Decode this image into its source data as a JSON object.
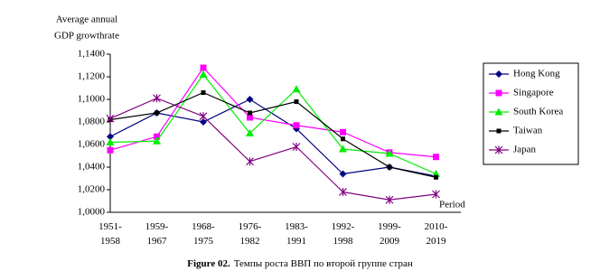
{
  "chart_data": {
    "type": "line",
    "y_label": [
      "Average annual",
      "GDP growthrate"
    ],
    "x_label": "Period",
    "caption": {
      "label": "Figure 02.",
      "text": "Темпы роста ВВП по второй группе стран"
    },
    "categories": [
      [
        "1951-",
        "1958"
      ],
      [
        "1959-",
        "1967"
      ],
      [
        "1968-",
        "1975"
      ],
      [
        "1976-",
        "1982"
      ],
      [
        "1983-",
        "1991"
      ],
      [
        "1992-",
        "1998"
      ],
      [
        "1999-",
        "2009"
      ],
      [
        "2010-",
        "2019"
      ]
    ],
    "ylim": [
      1.0,
      1.14
    ],
    "yticks": [
      {
        "value": 1.0,
        "label": "1,0000"
      },
      {
        "value": 1.02,
        "label": "1,0200"
      },
      {
        "value": 1.04,
        "label": "1,0400"
      },
      {
        "value": 1.06,
        "label": "1,0600"
      },
      {
        "value": 1.08,
        "label": "1,0800"
      },
      {
        "value": 1.1,
        "label": "1,1000"
      },
      {
        "value": 1.12,
        "label": "1,1200"
      },
      {
        "value": 1.14,
        "label": "1,1400"
      }
    ],
    "series": [
      {
        "name": "Hong Kong",
        "color": "#000080",
        "marker": "diamond",
        "values": [
          1.067,
          1.088,
          1.08,
          1.1,
          1.074,
          1.034,
          1.04,
          1.032
        ]
      },
      {
        "name": "Singapore",
        "color": "#ff00ff",
        "marker": "square",
        "values": [
          1.055,
          1.067,
          1.128,
          1.084,
          1.077,
          1.071,
          1.053,
          1.049
        ]
      },
      {
        "name": "South Korea",
        "color": "#00ee00",
        "marker": "triangle",
        "values": [
          1.062,
          1.063,
          1.122,
          1.07,
          1.109,
          1.056,
          1.052,
          1.034
        ]
      },
      {
        "name": "Taiwan",
        "color": "#000000",
        "marker": "small-square",
        "values": [
          1.082,
          1.088,
          1.106,
          1.088,
          1.098,
          1.065,
          1.04,
          1.031
        ]
      },
      {
        "name": "Japan",
        "color": "#800080",
        "marker": "star",
        "values": [
          1.083,
          1.101,
          1.085,
          1.045,
          1.058,
          1.018,
          1.011,
          1.016
        ]
      }
    ]
  }
}
